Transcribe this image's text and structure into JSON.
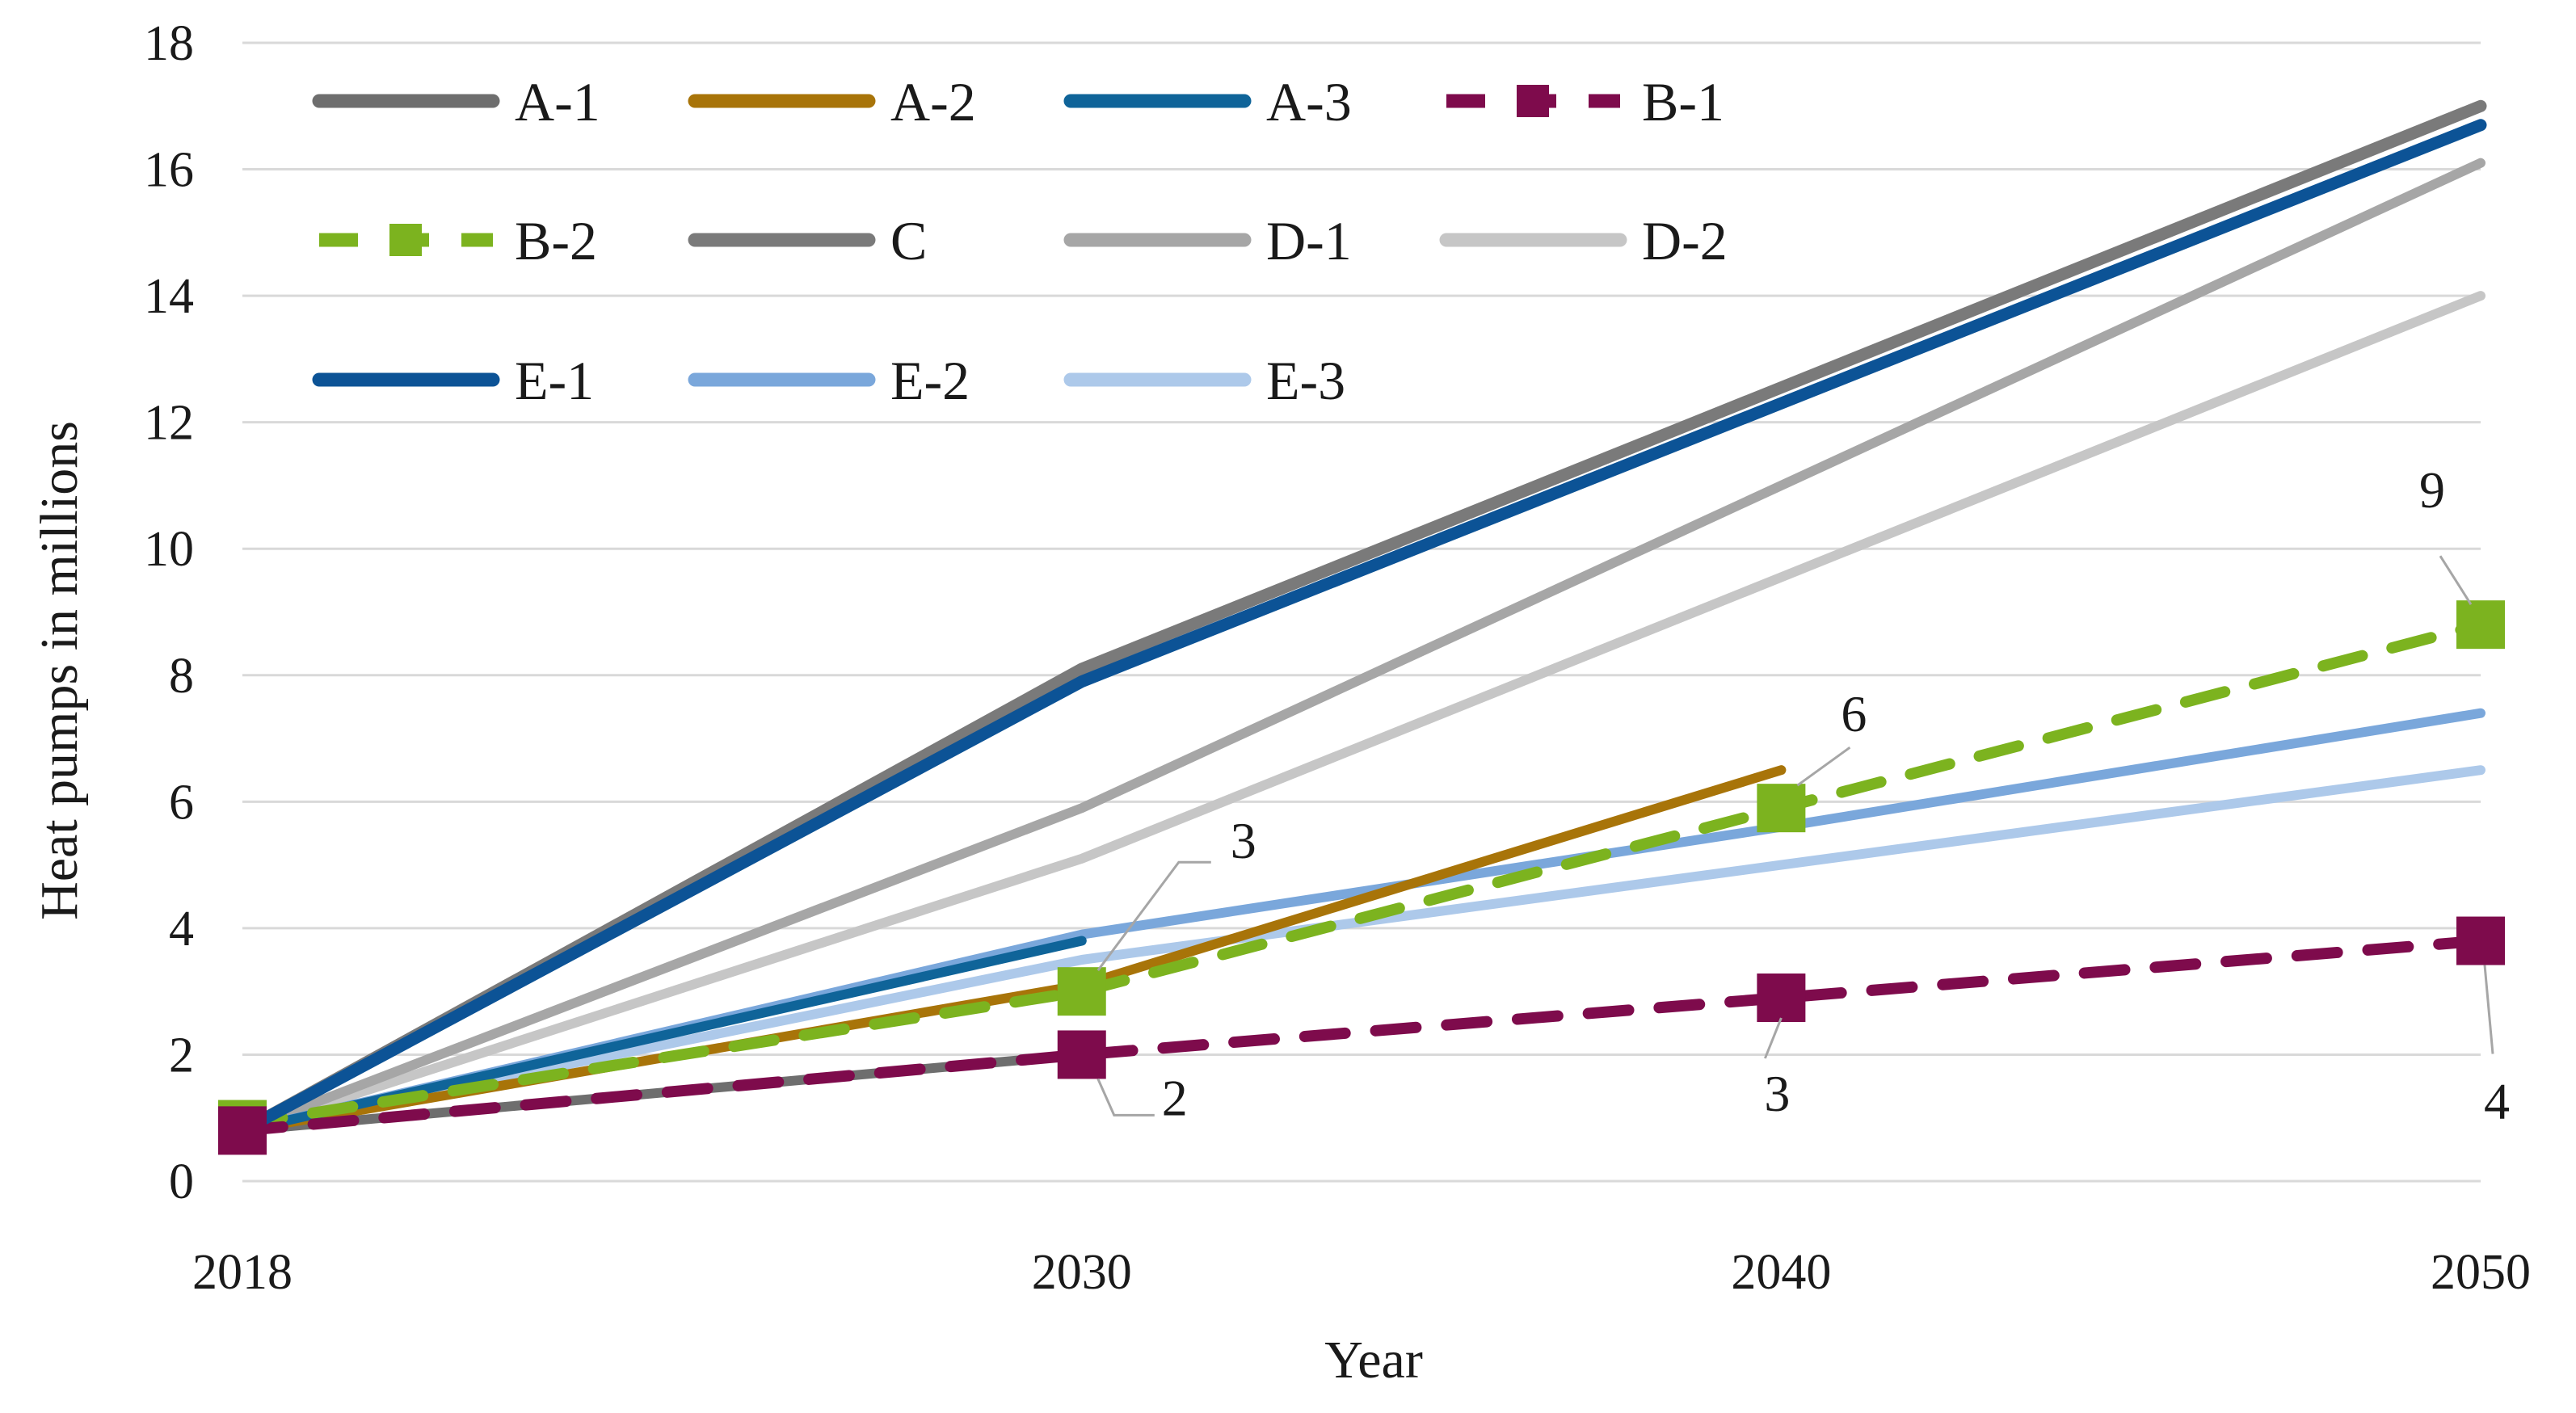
{
  "chart_data": {
    "type": "line",
    "title": "",
    "xlabel": "Year",
    "ylabel": "Heat pumps in millions",
    "categories": [
      "2018",
      "2030",
      "2040",
      "2050"
    ],
    "ylim": [
      0,
      18
    ],
    "yticks": [
      "0",
      "2",
      "4",
      "6",
      "8",
      "10",
      "12",
      "14",
      "16",
      "18"
    ],
    "grid": "horizontal",
    "legend": "top-left, inside plot, 4 columns",
    "series": [
      {
        "name": "A-1",
        "color": "#6e6e6e",
        "style": "solid",
        "values": [
          0.8,
          2.0,
          null,
          null
        ]
      },
      {
        "name": "A-2",
        "color": "#a87409",
        "style": "solid",
        "values": [
          0.8,
          3.1,
          6.5,
          null
        ]
      },
      {
        "name": "A-3",
        "color": "#0f6499",
        "style": "solid",
        "values": [
          0.8,
          3.8,
          null,
          null
        ]
      },
      {
        "name": "B-1",
        "color": "#7e0b4c",
        "style": "dashed-square",
        "values": [
          0.8,
          2.0,
          2.9,
          3.8
        ]
      },
      {
        "name": "B-2",
        "color": "#7cb31f",
        "style": "dashed-square",
        "values": [
          0.9,
          3.0,
          5.9,
          8.8
        ]
      },
      {
        "name": "C",
        "color": "#7a7a7a",
        "style": "solid",
        "values": [
          0.8,
          8.1,
          null,
          17.0
        ]
      },
      {
        "name": "D-1",
        "color": "#a6a6a6",
        "style": "solid",
        "values": [
          0.8,
          5.9,
          null,
          16.1
        ]
      },
      {
        "name": "D-2",
        "color": "#c6c6c6",
        "style": "solid",
        "values": [
          0.8,
          5.1,
          null,
          14.0
        ]
      },
      {
        "name": "E-1",
        "color": "#0c5396",
        "style": "solid",
        "values": [
          0.8,
          7.9,
          null,
          16.7
        ]
      },
      {
        "name": "E-2",
        "color": "#7aa7db",
        "style": "solid",
        "values": [
          0.8,
          3.9,
          5.6,
          7.4
        ]
      },
      {
        "name": "E-3",
        "color": "#adc9ea",
        "style": "solid",
        "values": [
          0.8,
          3.5,
          5.0,
          6.5
        ]
      }
    ],
    "annotations": [
      {
        "text": "3",
        "series": "B-2",
        "x": "2030"
      },
      {
        "text": "2",
        "series": "B-1",
        "x": "2030"
      },
      {
        "text": "6",
        "series": "B-2",
        "x": "2040"
      },
      {
        "text": "3",
        "series": "B-1",
        "x": "2040"
      },
      {
        "text": "9",
        "series": "B-2",
        "x": "2050"
      },
      {
        "text": "4",
        "series": "B-1",
        "x": "2050"
      }
    ]
  }
}
